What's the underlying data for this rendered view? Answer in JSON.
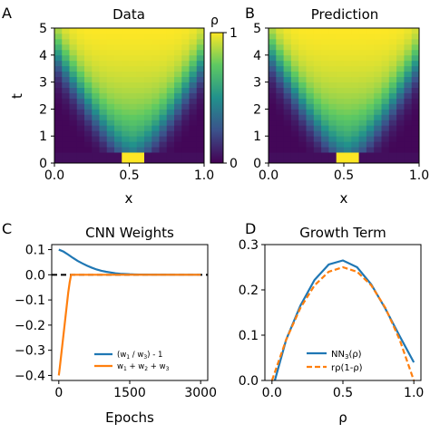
{
  "colors": {
    "blue": "#1f77b4",
    "orange": "#ff7f0e",
    "black": "#000000",
    "colormap": [
      "#440154",
      "#3b528b",
      "#21918c",
      "#5ec962",
      "#fde725"
    ]
  },
  "chart_data": [
    {
      "panel": "A",
      "type": "heatmap",
      "title": "Data",
      "xlabel": "x",
      "ylabel": "t",
      "xlim": [
        0.0,
        1.0
      ],
      "ylim": [
        0,
        5
      ],
      "xticks": [
        "0.0",
        "0.5",
        "1.0"
      ],
      "yticks": [
        "0",
        "1",
        "2",
        "3",
        "4",
        "5"
      ],
      "grid": false,
      "description_values": "density rho(x,t) in [0,1]; initial pulse rho=1 for 0.45<x<0.6 at t=0, spreading into a V shape that fills the domain by t=5"
    },
    {
      "panel": "B",
      "type": "heatmap",
      "title": "Prediction",
      "xlabel": "x",
      "ylabel": "",
      "xlim": [
        0.0,
        1.0
      ],
      "ylim": [
        0,
        5
      ],
      "xticks": [
        "0.0",
        "0.5",
        "1.0"
      ],
      "yticks": [
        "0",
        "1",
        "2",
        "3",
        "4",
        "5"
      ],
      "grid": false
    },
    {
      "panel": "colorbar",
      "type": "heatmap",
      "label": "ρ",
      "range": [
        0,
        1
      ],
      "ticks": [
        "0",
        "1"
      ]
    },
    {
      "panel": "C",
      "type": "line",
      "title": "CNN Weights",
      "xlabel": "Epochs",
      "ylabel": "",
      "xlim": [
        -150,
        3150
      ],
      "ylim": [
        -0.42,
        0.12
      ],
      "xticks": [
        0,
        1500,
        3000
      ],
      "yticks": [
        0.1,
        0.0,
        -0.1,
        -0.2,
        -0.3,
        -0.4
      ],
      "ytick_labels": [
        "0.1",
        "0.0",
        "−0.1",
        "−0.2",
        "−0.3",
        "−0.4"
      ],
      "reference_line": {
        "y": 0.0,
        "style": "dashed",
        "color": "black"
      },
      "legend": "lower-right",
      "series": [
        {
          "name": "(w1 / w3) - 1",
          "legend_main": "(w",
          "legend_parts": [
            "(w",
            "1",
            " / w",
            "3",
            ") - 1"
          ],
          "color": "blue",
          "x": [
            0,
            100,
            200,
            300,
            400,
            500,
            600,
            700,
            800,
            900,
            1000,
            1100,
            1200,
            1300,
            1400,
            1500,
            1600,
            1700,
            1800,
            2000,
            2200,
            2500,
            2800,
            3000
          ],
          "y": [
            0.1,
            0.092,
            0.08,
            0.067,
            0.055,
            0.045,
            0.036,
            0.028,
            0.021,
            0.016,
            0.012,
            0.009,
            0.006,
            0.004,
            0.003,
            0.002,
            0.0015,
            0.001,
            0.0007,
            0.0004,
            0.0002,
            0.0001,
            0.0,
            0.0
          ]
        },
        {
          "name": "w1 + w2 + w3",
          "legend_parts": [
            "w",
            "1",
            " + w",
            "2",
            " + w",
            "3"
          ],
          "color": "orange",
          "x": [
            0,
            20,
            50,
            80,
            110,
            140,
            170,
            200,
            230,
            260,
            300,
            500,
            1000,
            2000,
            3000
          ],
          "y": [
            -0.4,
            -0.37,
            -0.32,
            -0.27,
            -0.22,
            -0.17,
            -0.12,
            -0.07,
            -0.03,
            0.0,
            0.0,
            0.0,
            0.0,
            0.0,
            0.0
          ]
        }
      ]
    },
    {
      "panel": "D",
      "type": "line",
      "title": "Growth Term",
      "xlabel": "ρ",
      "ylabel": "",
      "xlim": [
        -0.05,
        1.05
      ],
      "ylim": [
        0.0,
        0.3
      ],
      "xticks": [
        0.0,
        0.5,
        1.0
      ],
      "xtick_labels": [
        "0.0",
        "0.5",
        "1.0"
      ],
      "yticks": [
        0.0,
        0.1,
        0.2,
        0.3
      ],
      "ytick_labels": [
        "0.0",
        "0.1",
        "0.2",
        "0.3"
      ],
      "legend": "lower-right",
      "series": [
        {
          "name": "NN3(ρ)",
          "legend_parts": [
            "NN",
            "3",
            "(ρ)"
          ],
          "color": "blue",
          "style": "solid",
          "x": [
            0.0,
            0.02,
            0.1,
            0.2,
            0.3,
            0.4,
            0.5,
            0.6,
            0.7,
            0.8,
            0.9,
            1.0
          ],
          "y": [
            -0.01,
            0.0,
            0.09,
            0.165,
            0.222,
            0.256,
            0.265,
            0.25,
            0.212,
            0.158,
            0.098,
            0.04
          ]
        },
        {
          "name": "rρ(1-ρ)",
          "legend_parts": [
            "rρ(1-ρ)"
          ],
          "color": "orange",
          "style": "dashed",
          "x": [
            0.0,
            0.1,
            0.2,
            0.3,
            0.4,
            0.5,
            0.6,
            0.7,
            0.8,
            0.9,
            1.0
          ],
          "y": [
            0.0,
            0.09,
            0.16,
            0.21,
            0.24,
            0.25,
            0.24,
            0.21,
            0.16,
            0.09,
            0.0
          ]
        }
      ]
    }
  ],
  "panel_letters": [
    "A",
    "B",
    "C",
    "D"
  ]
}
